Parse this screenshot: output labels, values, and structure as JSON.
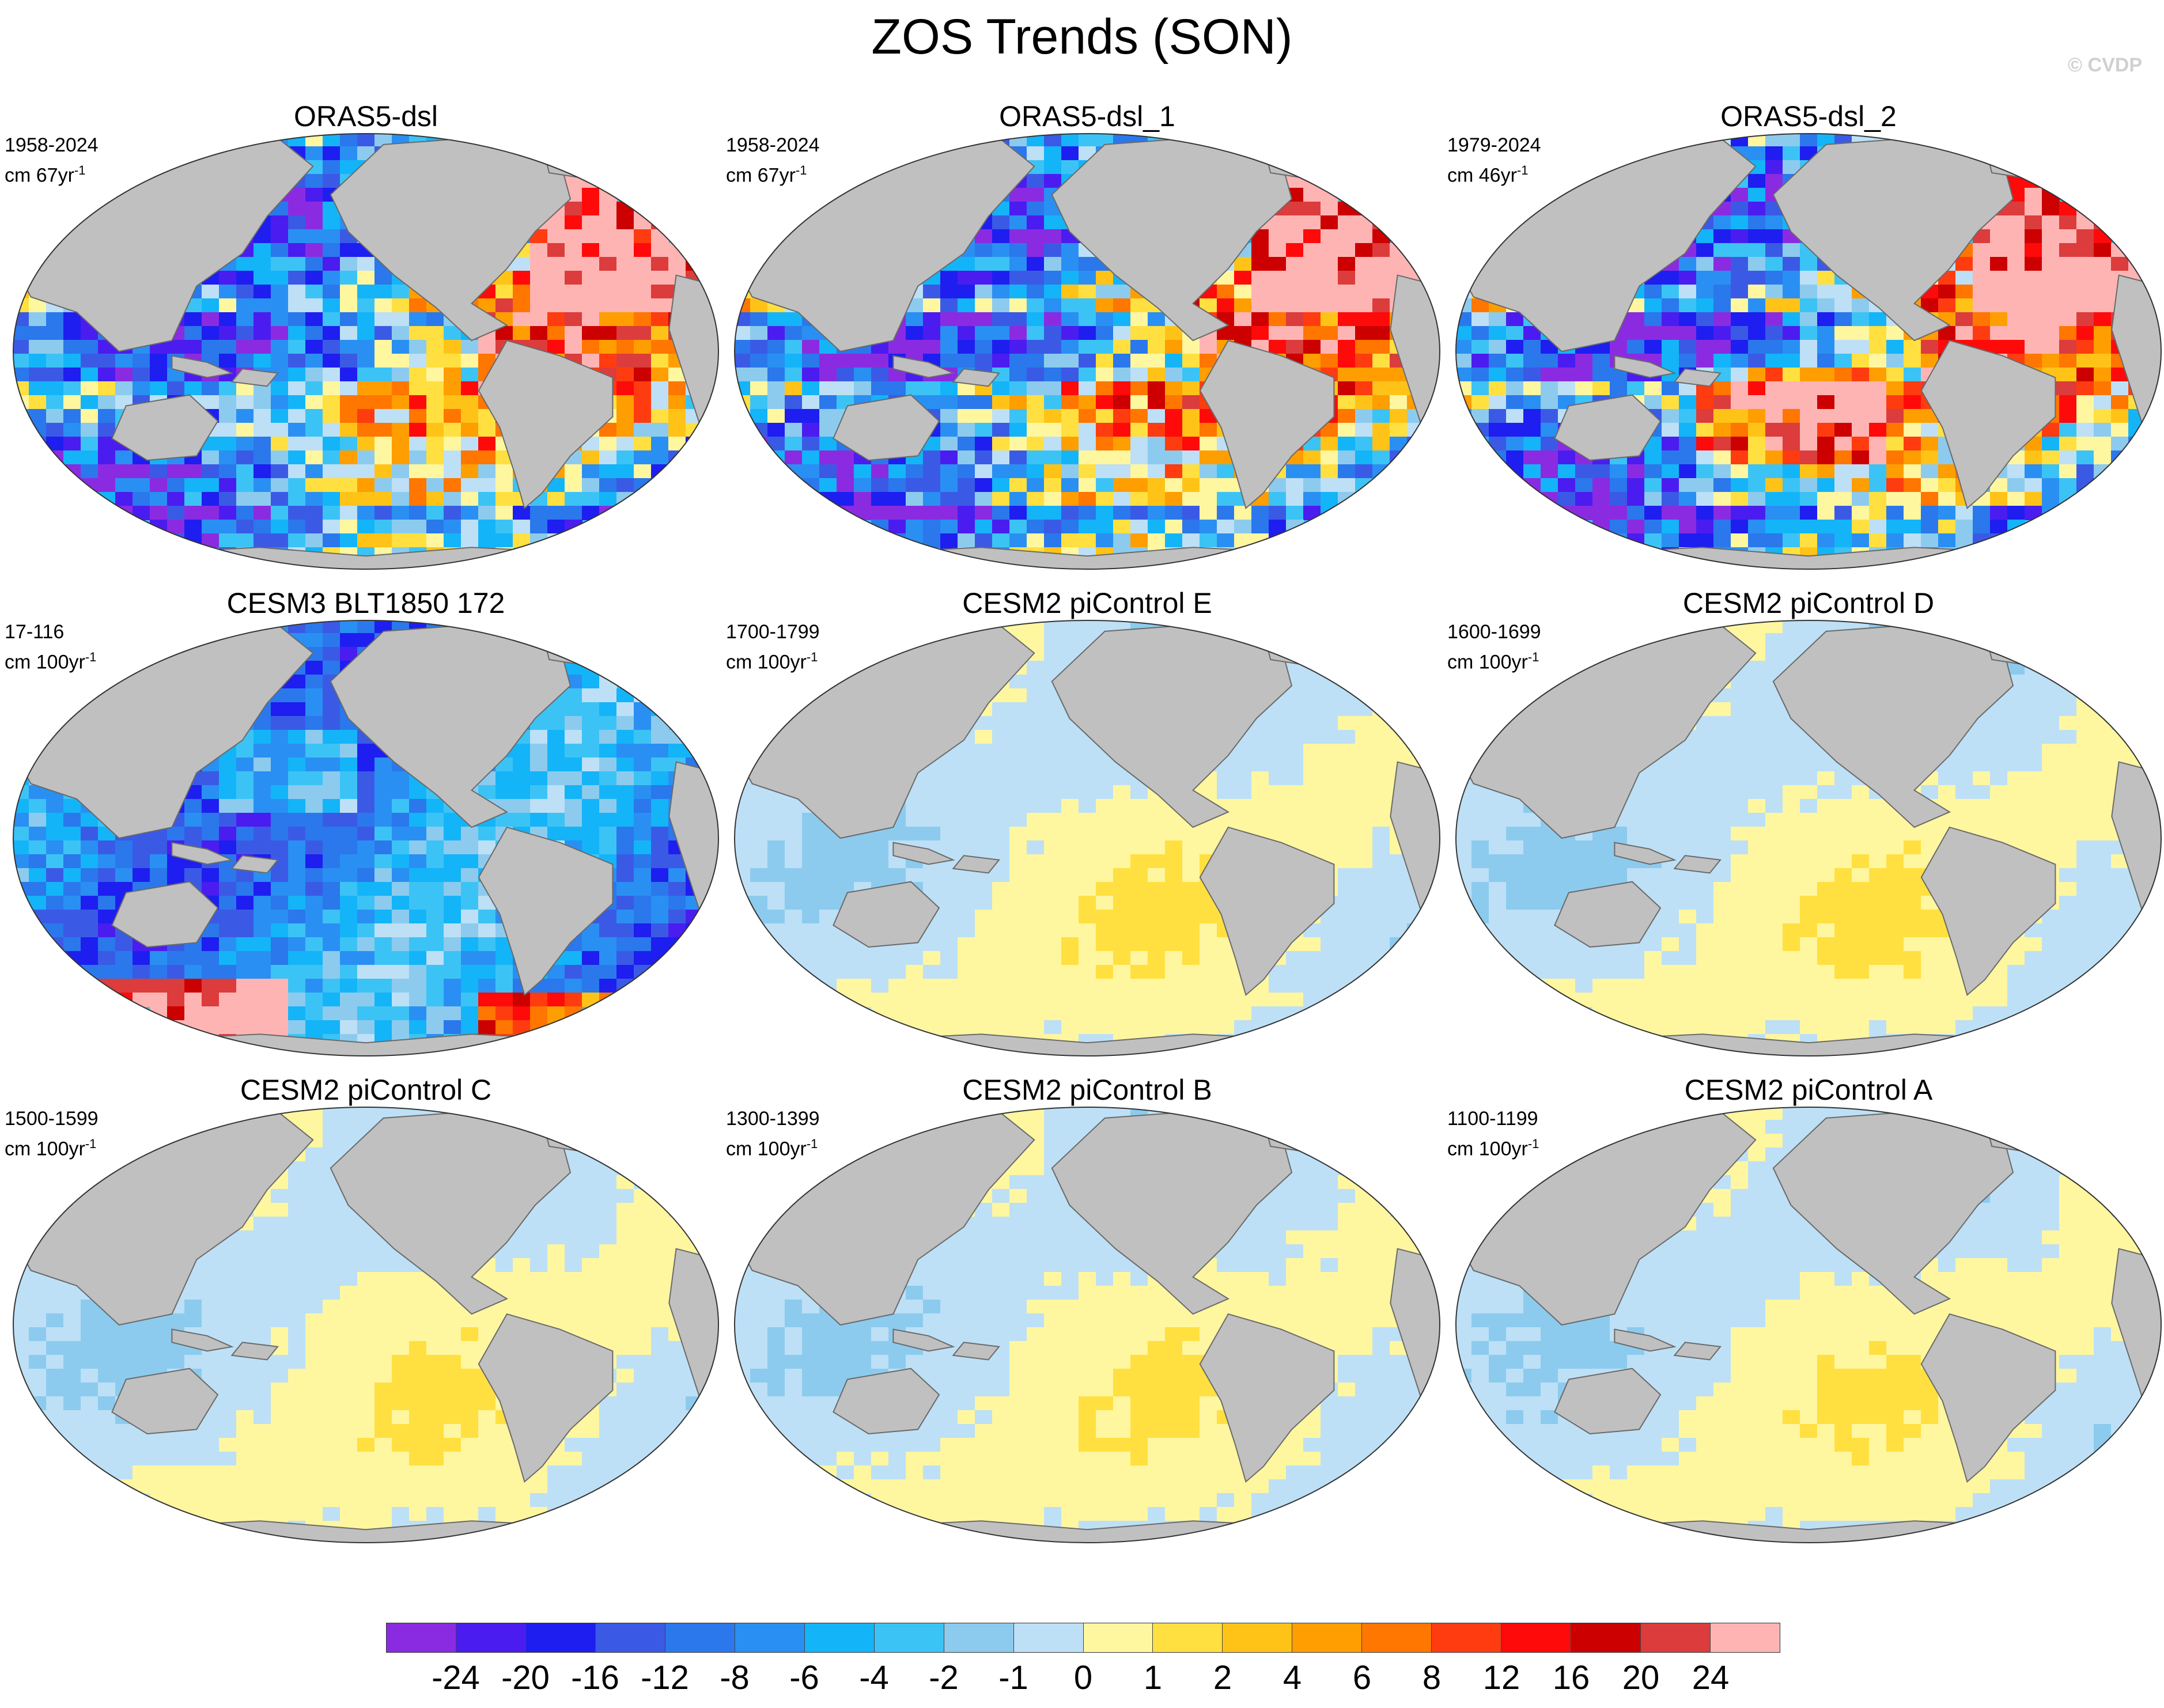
{
  "title": "ZOS Trends (SON)",
  "watermark": "© CVDP",
  "panels": [
    {
      "title": "ORAS5-dsl",
      "period": "1958-2024",
      "units": "cm 67yr",
      "units_exp": "-1",
      "pattern": "obs"
    },
    {
      "title": "ORAS5-dsl_1",
      "period": "1958-2024",
      "units": "cm 67yr",
      "units_exp": "-1",
      "pattern": "obs"
    },
    {
      "title": "ORAS5-dsl_2",
      "period": "1979-2024",
      "units": "cm 46yr",
      "units_exp": "-1",
      "pattern": "obs2"
    },
    {
      "title": "CESM3 BLT1850 172",
      "period": "17-116",
      "units": "cm 100yr",
      "units_exp": "-1",
      "pattern": "cesm3"
    },
    {
      "title": "CESM2 piControl E",
      "period": "1700-1799",
      "units": "cm 100yr",
      "units_exp": "-1",
      "pattern": "pi"
    },
    {
      "title": "CESM2 piControl D",
      "period": "1600-1699",
      "units": "cm 100yr",
      "units_exp": "-1",
      "pattern": "pi"
    },
    {
      "title": "CESM2 piControl C",
      "period": "1500-1599",
      "units": "cm 100yr",
      "units_exp": "-1",
      "pattern": "pi"
    },
    {
      "title": "CESM2 piControl B",
      "period": "1300-1399",
      "units": "cm 100yr",
      "units_exp": "-1",
      "pattern": "pi"
    },
    {
      "title": "CESM2 piControl A",
      "period": "1100-1199",
      "units": "cm 100yr",
      "units_exp": "-1",
      "pattern": "pi"
    }
  ],
  "colorbar": {
    "labels": [
      "-24",
      "-20",
      "-16",
      "-12",
      "-8",
      "-6",
      "-4",
      "-2",
      "-1",
      "0",
      "1",
      "2",
      "4",
      "6",
      "8",
      "12",
      "16",
      "20",
      "24"
    ],
    "colors": [
      "#8a2be2",
      "#4b1cf0",
      "#1e1ef0",
      "#3a5ae6",
      "#2a78ec",
      "#2a8ff2",
      "#14b4f8",
      "#3cc3f5",
      "#8ccbee",
      "#bde0f6",
      "#fff6a0",
      "#ffe040",
      "#ffc318",
      "#ff9e00",
      "#ff7600",
      "#ff3c10",
      "#ff0a0a",
      "#cc0000",
      "#dc3c3c",
      "#ffb4b4"
    ]
  },
  "map_colors": {
    "land": "#c0c0c0",
    "land_edge": "#6a6a6a"
  }
}
